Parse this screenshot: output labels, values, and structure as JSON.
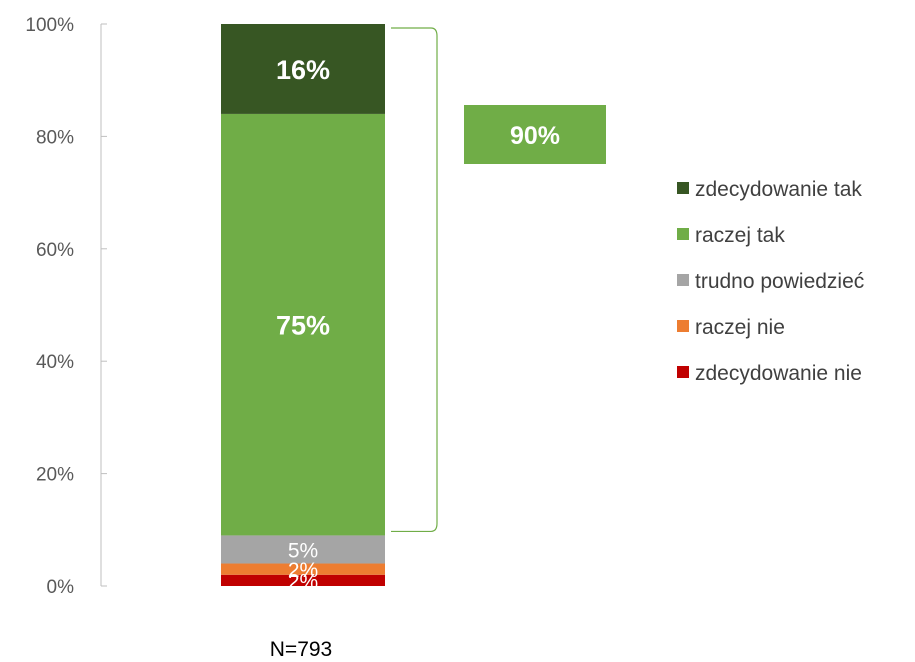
{
  "chart_data": {
    "type": "bar",
    "stacked": true,
    "orientation": "vertical",
    "categories": [
      "N=793"
    ],
    "series": [
      {
        "name": "zdecydowanie nie",
        "values": [
          2
        ],
        "label": "2%",
        "color": "#C00000"
      },
      {
        "name": "raczej nie",
        "values": [
          2
        ],
        "label": "2%",
        "color": "#ED7D31"
      },
      {
        "name": "trudno powiedzieć",
        "values": [
          5
        ],
        "label": "5%",
        "color": "#A5A5A5"
      },
      {
        "name": "raczej tak",
        "values": [
          75
        ],
        "label": "75%",
        "color": "#70AD47"
      },
      {
        "name": "zdecydowanie tak",
        "values": [
          16
        ],
        "label": "16%",
        "color": "#375623"
      }
    ],
    "legend_order": [
      "zdecydowanie tak",
      "raczej tak",
      "trudno powiedzieć",
      "raczej nie",
      "zdecydowanie nie"
    ],
    "y_ticks": [
      "0%",
      "20%",
      "40%",
      "60%",
      "80%",
      "100%"
    ],
    "ylim": [
      0,
      100
    ],
    "grid": false,
    "legend_position": "right",
    "annotations": [
      {
        "text": "90%",
        "covers": [
          "raczej tak",
          "zdecydowanie tak"
        ],
        "value": 90,
        "color": "#70AD47"
      }
    ],
    "xlabel": "N=793"
  }
}
